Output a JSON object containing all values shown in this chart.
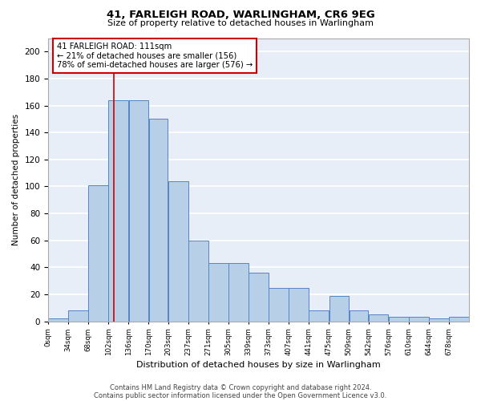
{
  "title": "41, FARLEIGH ROAD, WARLINGHAM, CR6 9EG",
  "subtitle": "Size of property relative to detached houses in Warlingham",
  "xlabel": "Distribution of detached houses by size in Warlingham",
  "ylabel": "Number of detached properties",
  "bar_heights": [
    2,
    8,
    101,
    164,
    164,
    150,
    104,
    60,
    43,
    43,
    36,
    25,
    25,
    8,
    19,
    8,
    5,
    3,
    3,
    2,
    3
  ],
  "bin_edges": [
    0,
    34,
    68,
    102,
    136,
    170,
    203,
    237,
    271,
    305,
    339,
    373,
    407,
    441,
    475,
    509,
    542,
    576,
    610,
    644,
    678,
    712
  ],
  "tick_labels": [
    "0sqm",
    "34sqm",
    "68sqm",
    "102sqm",
    "136sqm",
    "170sqm",
    "203sqm",
    "237sqm",
    "271sqm",
    "305sqm",
    "339sqm",
    "373sqm",
    "407sqm",
    "441sqm",
    "475sqm",
    "509sqm",
    "542sqm",
    "576sqm",
    "610sqm",
    "644sqm",
    "678sqm"
  ],
  "bar_color": "#b8cfe8",
  "bar_edge_color": "#5585c5",
  "background_color": "#e8eef8",
  "grid_color": "#ffffff",
  "ylim": [
    0,
    210
  ],
  "yticks": [
    0,
    20,
    40,
    60,
    80,
    100,
    120,
    140,
    160,
    180,
    200
  ],
  "property_size": 111,
  "annotation_text": "41 FARLEIGH ROAD: 111sqm\n← 21% of detached houses are smaller (156)\n78% of semi-detached houses are larger (576) →",
  "annotation_box_color": "#ffffff",
  "annotation_border_color": "#cc0000",
  "red_line_color": "#cc0000",
  "footer_line1": "Contains HM Land Registry data © Crown copyright and database right 2024.",
  "footer_line2": "Contains public sector information licensed under the Open Government Licence v3.0."
}
